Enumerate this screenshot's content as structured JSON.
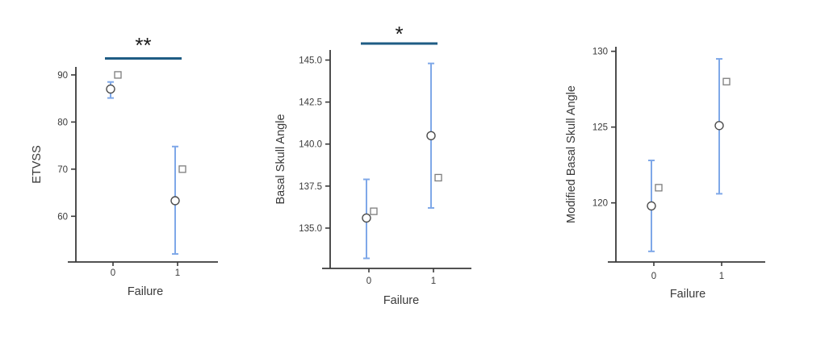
{
  "figure": {
    "background": "#ffffff",
    "colors": {
      "error_bar": "#7FA8E8",
      "significance_line": "#1F5C84",
      "significance_text": "#1A1A1A",
      "axis": "#3A3A3A",
      "text": "#3A3A3A",
      "circle_marker_stroke": "#4D4D4D",
      "square_marker_stroke": "#7D7D7D",
      "marker_fill": "#FFFFFF"
    }
  },
  "chart_data": [
    {
      "id": "etvss",
      "type": "scatter",
      "title": "",
      "xlabel": "Failure",
      "ylabel": "ETVSS",
      "categories": [
        "0",
        "1"
      ],
      "ytick_labels": [
        "60",
        "70",
        "80",
        "90"
      ],
      "ylim": [
        50.3,
        91.7
      ],
      "grid": false,
      "legend": "none",
      "series": [
        {
          "name": "mean with error bar (circle)",
          "marker": "circle",
          "values": [
            87.0,
            63.3
          ],
          "ci_low": [
            85.1,
            52.0
          ],
          "ci_high": [
            88.5,
            74.8
          ]
        },
        {
          "name": "secondary estimate (square)",
          "marker": "square",
          "values": [
            90.0,
            70.0
          ]
        }
      ],
      "significance": "**"
    },
    {
      "id": "basal-skull-angle",
      "type": "scatter",
      "title": "",
      "xlabel": "Failure",
      "ylabel": "Basal Skull Angle",
      "categories": [
        "0",
        "1"
      ],
      "ytick_labels": [
        "135.0",
        "137.5",
        "140.0",
        "142.5",
        "145.0"
      ],
      "ylim": [
        132.6,
        145.6
      ],
      "grid": false,
      "legend": "none",
      "series": [
        {
          "name": "mean with error bar (circle)",
          "marker": "circle",
          "values": [
            135.6,
            140.5
          ],
          "ci_low": [
            133.2,
            136.2
          ],
          "ci_high": [
            137.9,
            144.8
          ]
        },
        {
          "name": "secondary estimate (square)",
          "marker": "square",
          "values": [
            136.0,
            138.0
          ]
        }
      ],
      "significance": "*"
    },
    {
      "id": "modified-basal-skull-angle",
      "type": "scatter",
      "title": "",
      "xlabel": "Failure",
      "ylabel": "Modified Basal Skull Angle",
      "categories": [
        "0",
        "1"
      ],
      "ytick_labels": [
        "120",
        "125",
        "130"
      ],
      "ylim": [
        116.1,
        130.3
      ],
      "grid": false,
      "legend": "none",
      "series": [
        {
          "name": "mean with error bar (circle)",
          "marker": "circle",
          "values": [
            119.8,
            125.1
          ],
          "ci_low": [
            116.8,
            120.6
          ],
          "ci_high": [
            122.8,
            129.5
          ]
        },
        {
          "name": "secondary estimate (square)",
          "marker": "square",
          "values": [
            121.0,
            128.0
          ]
        }
      ],
      "significance": null
    }
  ]
}
